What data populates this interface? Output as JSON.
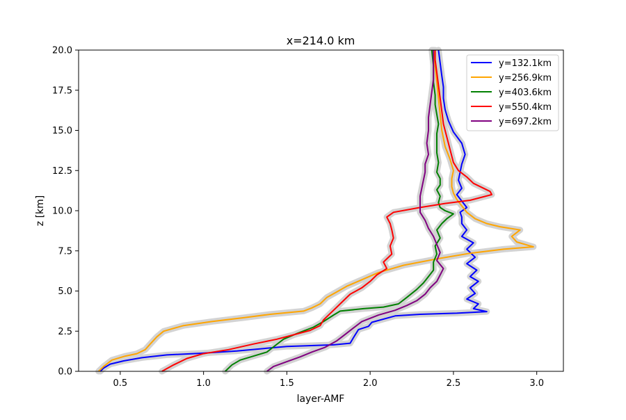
{
  "chart_data": {
    "type": "line",
    "title": "x=214.0 km",
    "xlabel": "layer-AMF",
    "ylabel": "z [km]",
    "xlim": [
      0.25,
      3.16
    ],
    "ylim": [
      0,
      20
    ],
    "xticks": [
      0.5,
      1.0,
      1.5,
      2.0,
      2.5,
      3.0
    ],
    "xtick_labels": [
      "0.5",
      "1.0",
      "1.5",
      "2.0",
      "2.5",
      "3.0"
    ],
    "yticks": [
      0,
      2.5,
      5,
      7.5,
      10,
      12.5,
      15,
      17.5,
      20
    ],
    "ytick_labels": [
      "0.0",
      "2.5",
      "5.0",
      "7.5",
      "10.0",
      "12.5",
      "15.0",
      "17.5",
      "20.0"
    ],
    "grid": false,
    "legend_position": "top-right",
    "uncertainty_band_color": "#d3d3d3",
    "series": [
      {
        "name": "y=132.1km",
        "color": "#0000ff",
        "points": [
          [
            0.38,
            0
          ],
          [
            0.4,
            0.2
          ],
          [
            0.44,
            0.45
          ],
          [
            0.52,
            0.65
          ],
          [
            0.63,
            0.85
          ],
          [
            0.78,
            1.02
          ],
          [
            0.98,
            1.12
          ],
          [
            1.2,
            1.27
          ],
          [
            1.5,
            1.55
          ],
          [
            1.78,
            1.65
          ],
          [
            1.88,
            1.75
          ],
          [
            1.9,
            2.1
          ],
          [
            1.93,
            2.6
          ],
          [
            1.99,
            2.8
          ],
          [
            2.01,
            3.05
          ],
          [
            2.15,
            3.45
          ],
          [
            2.3,
            3.55
          ],
          [
            2.52,
            3.62
          ],
          [
            2.7,
            3.72
          ],
          [
            2.62,
            3.9
          ],
          [
            2.65,
            4.2
          ],
          [
            2.58,
            4.5
          ],
          [
            2.63,
            4.85
          ],
          [
            2.6,
            5.2
          ],
          [
            2.65,
            5.6
          ],
          [
            2.6,
            5.9
          ],
          [
            2.64,
            6.3
          ],
          [
            2.58,
            6.7
          ],
          [
            2.63,
            7.1
          ],
          [
            2.58,
            7.6
          ],
          [
            2.62,
            8.0
          ],
          [
            2.55,
            8.4
          ],
          [
            2.58,
            8.8
          ],
          [
            2.55,
            9.2
          ],
          [
            2.55,
            9.6
          ],
          [
            2.54,
            9.9
          ],
          [
            2.58,
            10.2
          ],
          [
            2.55,
            10.6
          ],
          [
            2.52,
            11.0
          ],
          [
            2.55,
            11.4
          ],
          [
            2.53,
            11.9
          ],
          [
            2.54,
            12.4
          ],
          [
            2.55,
            12.9
          ],
          [
            2.57,
            13.5
          ],
          [
            2.55,
            14.2
          ],
          [
            2.5,
            14.9
          ],
          [
            2.47,
            15.6
          ],
          [
            2.45,
            16.3
          ],
          [
            2.44,
            17.0
          ],
          [
            2.44,
            17.7
          ],
          [
            2.43,
            18.4
          ],
          [
            2.42,
            19.2
          ],
          [
            2.41,
            20
          ]
        ]
      },
      {
        "name": "y=256.9km",
        "color": "#ffa500",
        "points": [
          [
            0.37,
            0
          ],
          [
            0.4,
            0.3
          ],
          [
            0.45,
            0.7
          ],
          [
            0.53,
            0.95
          ],
          [
            0.6,
            1.1
          ],
          [
            0.65,
            1.35
          ],
          [
            0.68,
            1.7
          ],
          [
            0.72,
            2.15
          ],
          [
            0.76,
            2.5
          ],
          [
            0.88,
            2.85
          ],
          [
            1.05,
            3.1
          ],
          [
            1.25,
            3.35
          ],
          [
            1.4,
            3.55
          ],
          [
            1.6,
            3.75
          ],
          [
            1.65,
            3.95
          ],
          [
            1.7,
            4.2
          ],
          [
            1.74,
            4.6
          ],
          [
            1.8,
            4.95
          ],
          [
            1.86,
            5.3
          ],
          [
            1.95,
            5.7
          ],
          [
            2.05,
            6.15
          ],
          [
            2.2,
            6.6
          ],
          [
            2.4,
            7.0
          ],
          [
            2.6,
            7.35
          ],
          [
            2.8,
            7.6
          ],
          [
            2.98,
            7.75
          ],
          [
            2.88,
            8.05
          ],
          [
            2.85,
            8.4
          ],
          [
            2.9,
            8.8
          ],
          [
            2.78,
            9.0
          ],
          [
            2.7,
            9.2
          ],
          [
            2.63,
            9.5
          ],
          [
            2.58,
            9.9
          ],
          [
            2.55,
            10.3
          ],
          [
            2.52,
            10.7
          ],
          [
            2.5,
            11.1
          ],
          [
            2.49,
            11.5
          ],
          [
            2.49,
            12.0
          ],
          [
            2.5,
            12.5
          ],
          [
            2.48,
            13.2
          ],
          [
            2.45,
            14.0
          ],
          [
            2.43,
            15.0
          ],
          [
            2.42,
            16.0
          ],
          [
            2.41,
            17.0
          ],
          [
            2.4,
            18.0
          ],
          [
            2.39,
            19.0
          ],
          [
            2.38,
            20
          ]
        ]
      },
      {
        "name": "y=403.6km",
        "color": "#008000",
        "points": [
          [
            1.13,
            0
          ],
          [
            1.17,
            0.4
          ],
          [
            1.22,
            0.7
          ],
          [
            1.3,
            0.95
          ],
          [
            1.38,
            1.2
          ],
          [
            1.43,
            1.6
          ],
          [
            1.48,
            2.0
          ],
          [
            1.56,
            2.35
          ],
          [
            1.66,
            2.75
          ],
          [
            1.72,
            3.1
          ],
          [
            1.78,
            3.5
          ],
          [
            1.82,
            3.75
          ],
          [
            1.96,
            3.9
          ],
          [
            2.08,
            4.0
          ],
          [
            2.17,
            4.2
          ],
          [
            2.22,
            4.6
          ],
          [
            2.28,
            5.1
          ],
          [
            2.32,
            5.5
          ],
          [
            2.35,
            5.9
          ],
          [
            2.38,
            6.3
          ],
          [
            2.38,
            6.8
          ],
          [
            2.4,
            7.3
          ],
          [
            2.39,
            7.8
          ],
          [
            2.42,
            8.3
          ],
          [
            2.4,
            8.8
          ],
          [
            2.43,
            9.2
          ],
          [
            2.46,
            9.5
          ],
          [
            2.5,
            9.8
          ],
          [
            2.45,
            10.0
          ],
          [
            2.42,
            10.2
          ],
          [
            2.41,
            10.5
          ],
          [
            2.42,
            10.9
          ],
          [
            2.4,
            11.3
          ],
          [
            2.42,
            11.6
          ],
          [
            2.42,
            12.0
          ],
          [
            2.4,
            12.4
          ],
          [
            2.41,
            13.0
          ],
          [
            2.4,
            13.6
          ],
          [
            2.4,
            14.2
          ],
          [
            2.4,
            14.8
          ],
          [
            2.41,
            15.4
          ],
          [
            2.4,
            16.0
          ],
          [
            2.39,
            16.6
          ],
          [
            2.39,
            17.2
          ],
          [
            2.38,
            18.0
          ],
          [
            2.38,
            19.0
          ],
          [
            2.37,
            20
          ]
        ]
      },
      {
        "name": "y=550.4km",
        "color": "#ff0000",
        "points": [
          [
            0.75,
            0
          ],
          [
            0.82,
            0.4
          ],
          [
            0.9,
            0.8
          ],
          [
            1.0,
            1.1
          ],
          [
            1.15,
            1.35
          ],
          [
            1.3,
            1.7
          ],
          [
            1.44,
            2.0
          ],
          [
            1.55,
            2.3
          ],
          [
            1.64,
            2.55
          ],
          [
            1.7,
            2.85
          ],
          [
            1.72,
            3.2
          ],
          [
            1.76,
            3.6
          ],
          [
            1.8,
            4.0
          ],
          [
            1.84,
            4.4
          ],
          [
            1.88,
            4.8
          ],
          [
            1.95,
            5.2
          ],
          [
            2.0,
            5.6
          ],
          [
            2.04,
            6.0
          ],
          [
            2.1,
            6.4
          ],
          [
            2.08,
            6.8
          ],
          [
            2.13,
            7.3
          ],
          [
            2.12,
            7.8
          ],
          [
            2.14,
            8.3
          ],
          [
            2.13,
            8.8
          ],
          [
            2.12,
            9.2
          ],
          [
            2.1,
            9.6
          ],
          [
            2.14,
            9.9
          ],
          [
            2.3,
            10.2
          ],
          [
            2.45,
            10.45
          ],
          [
            2.6,
            10.65
          ],
          [
            2.73,
            11.0
          ],
          [
            2.72,
            11.2
          ],
          [
            2.62,
            11.7
          ],
          [
            2.58,
            12.1
          ],
          [
            2.53,
            12.5
          ],
          [
            2.5,
            13.0
          ],
          [
            2.48,
            13.8
          ],
          [
            2.46,
            14.6
          ],
          [
            2.44,
            15.4
          ],
          [
            2.43,
            16.2
          ],
          [
            2.42,
            17.0
          ],
          [
            2.41,
            17.8
          ],
          [
            2.4,
            18.6
          ],
          [
            2.39,
            19.4
          ],
          [
            2.39,
            20
          ]
        ]
      },
      {
        "name": "y=697.2km",
        "color": "#800080",
        "points": [
          [
            1.38,
            0
          ],
          [
            1.42,
            0.3
          ],
          [
            1.5,
            0.6
          ],
          [
            1.58,
            0.9
          ],
          [
            1.65,
            1.2
          ],
          [
            1.73,
            1.5
          ],
          [
            1.8,
            1.9
          ],
          [
            1.85,
            2.3
          ],
          [
            1.9,
            2.7
          ],
          [
            1.95,
            3.1
          ],
          [
            2.05,
            3.5
          ],
          [
            2.15,
            3.8
          ],
          [
            2.22,
            4.1
          ],
          [
            2.28,
            4.4
          ],
          [
            2.33,
            4.8
          ],
          [
            2.36,
            5.2
          ],
          [
            2.4,
            5.6
          ],
          [
            2.42,
            6.0
          ],
          [
            2.44,
            6.4
          ],
          [
            2.4,
            6.9
          ],
          [
            2.42,
            7.4
          ],
          [
            2.4,
            7.9
          ],
          [
            2.38,
            8.4
          ],
          [
            2.35,
            8.9
          ],
          [
            2.33,
            9.4
          ],
          [
            2.3,
            9.9
          ],
          [
            2.3,
            10.4
          ],
          [
            2.3,
            10.9
          ],
          [
            2.31,
            11.4
          ],
          [
            2.32,
            11.9
          ],
          [
            2.33,
            12.4
          ],
          [
            2.33,
            12.9
          ],
          [
            2.35,
            13.5
          ],
          [
            2.34,
            14.2
          ],
          [
            2.35,
            15.0
          ],
          [
            2.35,
            15.8
          ],
          [
            2.36,
            16.6
          ],
          [
            2.37,
            17.4
          ],
          [
            2.38,
            18.2
          ],
          [
            2.38,
            19.0
          ],
          [
            2.38,
            20
          ]
        ]
      }
    ]
  }
}
